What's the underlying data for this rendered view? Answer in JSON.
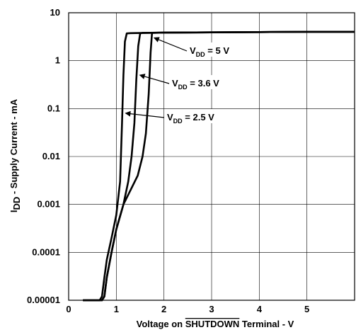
{
  "chart_data": {
    "type": "line",
    "xlabel": {
      "prefix": "Voltage on ",
      "overlined": "SHUTDOWN",
      "suffix": " Terminal - V"
    },
    "ylabel": {
      "prefix": "I",
      "sub": "DD",
      "suffix": " - Supply Current - mA"
    },
    "xlim": [
      0,
      6
    ],
    "ylim": [
      1e-05,
      10
    ],
    "yscale": "log",
    "grid": true,
    "x_ticks": [
      {
        "value": 0,
        "label": "0"
      },
      {
        "value": 1,
        "label": "1"
      },
      {
        "value": 2,
        "label": "2"
      },
      {
        "value": 3,
        "label": "3"
      },
      {
        "value": 4,
        "label": "4"
      },
      {
        "value": 5,
        "label": "5"
      }
    ],
    "y_ticks": [
      {
        "value": 10,
        "label": "10"
      },
      {
        "value": 1,
        "label": "1"
      },
      {
        "value": 0.1,
        "label": "0.1"
      },
      {
        "value": 0.01,
        "label": "0.01"
      },
      {
        "value": 0.001,
        "label": "0.001"
      },
      {
        "value": 0.0001,
        "label": "0.0001"
      },
      {
        "value": 1e-05,
        "label": "0.00001"
      }
    ],
    "series": [
      {
        "name": "VDD = 5 V",
        "label": {
          "base": "V",
          "sub": "DD",
          "rest": " = 5 V"
        },
        "x": [
          0.3,
          0.7,
          0.75,
          0.8,
          0.9,
          1.0,
          1.15,
          1.3,
          1.45,
          1.55,
          1.62,
          1.68,
          1.72,
          1.75,
          2.0,
          3.0,
          4.0,
          5.0,
          6.0
        ],
        "y": [
          1e-05,
          1e-05,
          1.2e-05,
          3e-05,
          0.0001,
          0.0003,
          0.001,
          0.002,
          0.004,
          0.01,
          0.03,
          0.2,
          1.5,
          3.8,
          3.85,
          3.9,
          3.95,
          4.0,
          4.0
        ]
      },
      {
        "name": "VDD = 3.6 V",
        "label": {
          "base": "V",
          "sub": "DD",
          "rest": " = 3.6 V"
        },
        "x": [
          0.3,
          0.7,
          0.75,
          0.8,
          0.9,
          1.0,
          1.15,
          1.25,
          1.32,
          1.38,
          1.42,
          1.46,
          1.5,
          1.55,
          2.0,
          3.0,
          4.0,
          5.0,
          6.0
        ],
        "y": [
          1e-05,
          1e-05,
          1.2e-05,
          3e-05,
          0.0001,
          0.0003,
          0.001,
          0.003,
          0.01,
          0.05,
          0.4,
          2.0,
          3.7,
          3.8,
          3.85,
          3.9,
          3.95,
          4.0,
          4.0
        ]
      },
      {
        "name": "VDD = 2.5 V",
        "label": {
          "base": "V",
          "sub": "DD",
          "rest": " = 2.5 V"
        },
        "x": [
          0.3,
          0.65,
          0.7,
          0.75,
          0.8,
          0.9,
          1.0,
          1.08,
          1.12,
          1.15,
          1.18,
          1.22,
          1.3,
          2.0,
          3.0,
          4.0,
          5.0,
          6.0
        ],
        "y": [
          1e-05,
          1e-05,
          1.2e-05,
          3e-05,
          7e-05,
          0.0002,
          0.0006,
          0.003,
          0.05,
          0.5,
          2.5,
          3.7,
          3.75,
          3.85,
          3.9,
          3.95,
          4.0,
          4.0
        ]
      }
    ],
    "annotations": [
      {
        "series": 0,
        "arrow_at": {
          "x": 1.75,
          "y": 3.0
        }
      },
      {
        "series": 1,
        "arrow_at": {
          "x": 1.45,
          "y": 0.5
        }
      },
      {
        "series": 2,
        "arrow_at": {
          "x": 1.15,
          "y": 0.08
        }
      }
    ]
  }
}
